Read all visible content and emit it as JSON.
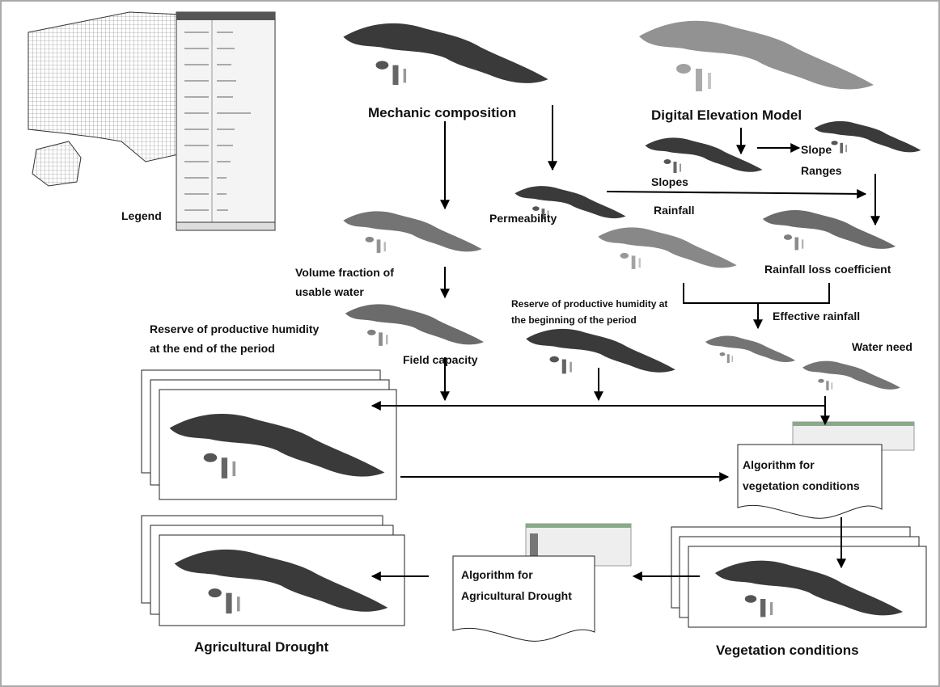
{
  "labels": {
    "legend": "Legend",
    "mechanic_composition": "Mechanic composition",
    "digital_elevation_model": "Digital Elevation Model",
    "slopes": "Slopes",
    "slope_ranges": [
      "Slope",
      "Ranges"
    ],
    "permeability": "Permeability",
    "rainfall": "Rainfall",
    "rainfall_loss_coefficient": "Rainfall loss coefficient",
    "volume_fraction": [
      "Volume fraction of",
      "usable water"
    ],
    "reserve_beginning": [
      "Reserve of productive humidity at",
      "the beginning of the period"
    ],
    "effective_rainfall": "Effective rainfall",
    "reserve_end": [
      "Reserve of productive humidity",
      "at the end of the period"
    ],
    "field_capacity": "Field capacity",
    "water_need": "Water need",
    "algorithm_vegetation": [
      "Algorithm for",
      "vegetation conditions"
    ],
    "algorithm_drought": [
      "Algorithm for",
      "Agricultural Drought"
    ],
    "agricultural_drought": "Agricultural Drought",
    "vegetation_conditions": "Vegetation conditions"
  }
}
